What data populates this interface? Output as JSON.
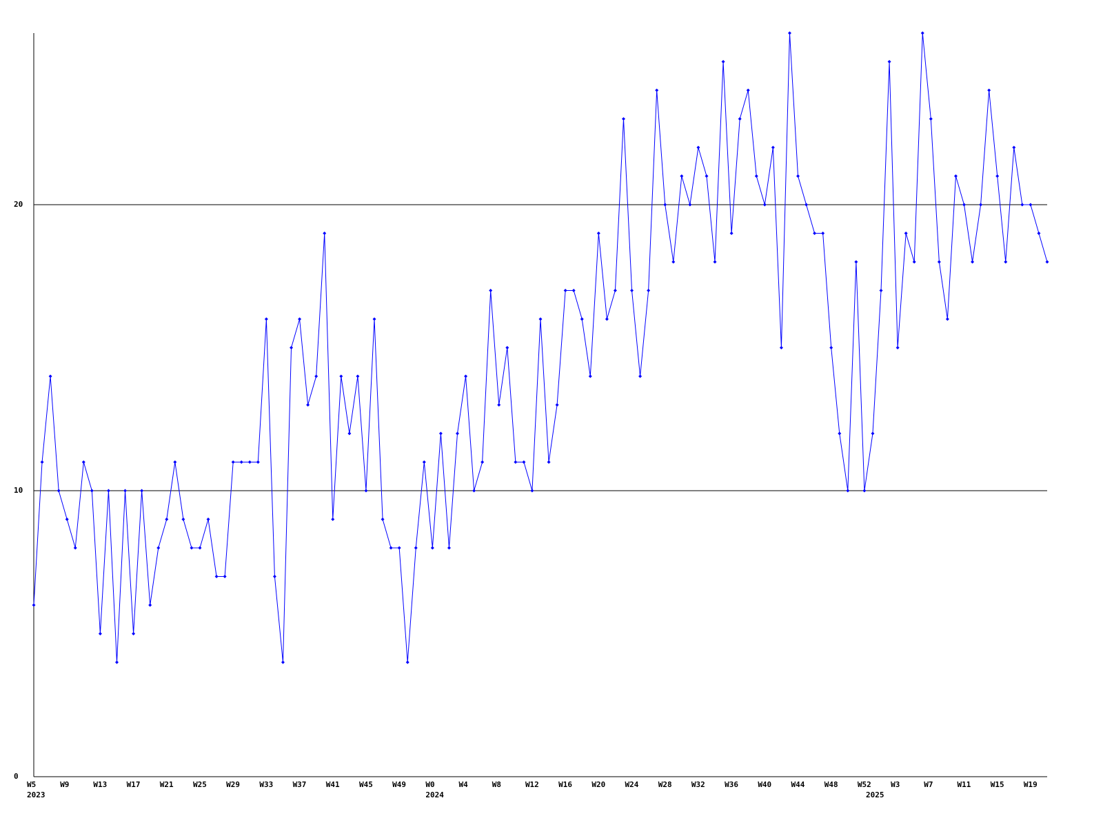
{
  "chart_data": {
    "type": "line",
    "categories": [
      "W5",
      null,
      null,
      null,
      "W9",
      null,
      null,
      null,
      "W13",
      null,
      null,
      null,
      "W17",
      null,
      null,
      null,
      "W21",
      null,
      null,
      null,
      "W25",
      null,
      null,
      null,
      "W29",
      null,
      null,
      null,
      "W33",
      null,
      null,
      null,
      "W37",
      null,
      null,
      null,
      "W41",
      null,
      null,
      null,
      "W45",
      null,
      null,
      null,
      "W49",
      null,
      null,
      null,
      "W0",
      null,
      null,
      null,
      "W4",
      null,
      null,
      null,
      "W8",
      null,
      null,
      null,
      "W12",
      null,
      null,
      null,
      "W16",
      null,
      null,
      null,
      "W20",
      null,
      null,
      null,
      "W24",
      null,
      null,
      null,
      "W28",
      null,
      null,
      null,
      "W32",
      null,
      null,
      null,
      "W36",
      null,
      null,
      null,
      "W40",
      null,
      null,
      null,
      "W44",
      null,
      null,
      null,
      "W48",
      null,
      null,
      null,
      "W52",
      null,
      null,
      null,
      "W3",
      null,
      null,
      null,
      "W7",
      null,
      null,
      null,
      "W11",
      null,
      null,
      null,
      "W15",
      null,
      null,
      null,
      "W19",
      null,
      null
    ],
    "year_labels": [
      "2023",
      null,
      null,
      null,
      null,
      null,
      null,
      null,
      null,
      null,
      null,
      null,
      null,
      null,
      null,
      null,
      null,
      null,
      null,
      null,
      null,
      null,
      null,
      null,
      null,
      null,
      null,
      null,
      null,
      null,
      null,
      null,
      null,
      null,
      null,
      null,
      null,
      null,
      null,
      null,
      null,
      null,
      null,
      null,
      null,
      null,
      null,
      null,
      "2024",
      null,
      null,
      null,
      null,
      null,
      null,
      null,
      null,
      null,
      null,
      null,
      null,
      null,
      null,
      null,
      null,
      null,
      null,
      null,
      null,
      null,
      null,
      null,
      null,
      null,
      null,
      null,
      null,
      null,
      null,
      null,
      null,
      null,
      null,
      null,
      null,
      null,
      null,
      null,
      null,
      null,
      null,
      null,
      null,
      null,
      null,
      null,
      null,
      null,
      null,
      null,
      null,
      "2025",
      null,
      null,
      null,
      null,
      null,
      null,
      null,
      null,
      null,
      null,
      null,
      null,
      null,
      null,
      null,
      null,
      null,
      null,
      null,
      null,
      null
    ],
    "series": [
      {
        "color": "#0000ff",
        "values": [
          6,
          11,
          14,
          10,
          9,
          8,
          11,
          10,
          5,
          10,
          4,
          10,
          5,
          10,
          6,
          8,
          9,
          11,
          9,
          8,
          8,
          9,
          7,
          7,
          11,
          11,
          11,
          11,
          16,
          7,
          4,
          15,
          16,
          13,
          14,
          19,
          9,
          14,
          12,
          14,
          10,
          16,
          9,
          8,
          8,
          4,
          8,
          11,
          8,
          12,
          8,
          12,
          14,
          10,
          11,
          17,
          13,
          15,
          11,
          11,
          10,
          16,
          11,
          13,
          17,
          17,
          16,
          14,
          19,
          16,
          17,
          23,
          17,
          14,
          17,
          24,
          20,
          18,
          21,
          20,
          22,
          21,
          18,
          25,
          19,
          23,
          24,
          21,
          20,
          22,
          15,
          26,
          21,
          20,
          19,
          19,
          15,
          12,
          10,
          18,
          10,
          12,
          17,
          25,
          15,
          19,
          18,
          26,
          23,
          18,
          16,
          21,
          20,
          18,
          20,
          24,
          21,
          18,
          22,
          20,
          20,
          19,
          18
        ]
      }
    ],
    "ylim": [
      0,
      26
    ],
    "yticks": [
      0,
      10,
      20
    ],
    "grid": true
  }
}
